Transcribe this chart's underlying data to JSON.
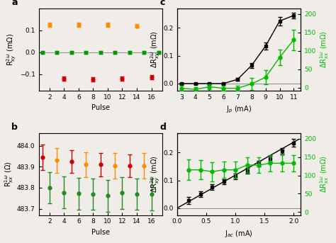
{
  "panel_a": {
    "label": "a",
    "xlabel": "Pulse",
    "ylabel": "R$^{2\\omega}_{xy}$ (mΩ)",
    "xlim": [
      0.5,
      17.5
    ],
    "ylim": [
      -0.175,
      0.2
    ],
    "yticks": [
      -0.1,
      0.0,
      0.1
    ],
    "xticks": [
      2,
      4,
      6,
      8,
      10,
      12,
      14,
      16
    ],
    "orange_x": [
      2,
      6,
      10,
      14
    ],
    "orange_y": [
      0.125,
      0.125,
      0.125,
      0.12
    ],
    "orange_yerr": [
      0.009,
      0.009,
      0.009,
      0.009
    ],
    "green_x": [
      1,
      3,
      5,
      7,
      9,
      11,
      13,
      15,
      17
    ],
    "green_y": [
      0.0,
      0.0,
      0.0,
      0.0,
      0.0,
      0.0,
      0.0,
      0.0,
      0.0
    ],
    "green_yerr": [
      0.006,
      0.006,
      0.006,
      0.006,
      0.006,
      0.006,
      0.006,
      0.006,
      0.006
    ],
    "red_x": [
      4,
      8,
      12,
      16
    ],
    "red_y": [
      -0.12,
      -0.125,
      -0.12,
      -0.115
    ],
    "red_yerr": [
      0.01,
      0.01,
      0.01,
      0.01
    ],
    "orange_color": "#FF8C00",
    "green_color": "#009900",
    "red_color": "#CC0000",
    "hline_y": 0.0
  },
  "panel_b": {
    "label": "b",
    "xlabel": "Pulse",
    "ylabel": "R$^{1\\omega}_{xx}$ (Ω)",
    "xlim": [
      0.5,
      17.5
    ],
    "ylim": [
      483.67,
      484.06
    ],
    "yticks": [
      483.7,
      483.8,
      483.9,
      484.0
    ],
    "xticks": [
      2,
      4,
      6,
      8,
      10,
      12,
      14,
      16
    ],
    "red_x": [
      1,
      5,
      9,
      13
    ],
    "red_y": [
      483.945,
      483.925,
      483.91,
      483.905
    ],
    "red_yerr": [
      0.06,
      0.055,
      0.055,
      0.055
    ],
    "orange_x": [
      3,
      7,
      11,
      15
    ],
    "orange_y": [
      483.93,
      483.91,
      483.905,
      483.905
    ],
    "orange_yerr": [
      0.06,
      0.06,
      0.06,
      0.06
    ],
    "green_x": [
      2,
      4,
      6,
      8,
      10,
      12,
      14,
      16
    ],
    "green_y": [
      483.8,
      483.778,
      483.772,
      483.77,
      483.762,
      483.775,
      483.77,
      483.768
    ],
    "green_yerr": [
      0.075,
      0.075,
      0.075,
      0.075,
      0.075,
      0.075,
      0.075,
      0.075
    ],
    "orange_color": "#FF8C00",
    "red_color": "#CC0000",
    "green_color": "#228B22"
  },
  "panel_c": {
    "label": "c",
    "xlabel": "J$_p$ (mA)",
    "ylabel_left": "ΔR$^{2\\omega}_{xy}$ (mΩ)",
    "ylabel_right": "ΔR$^{1\\omega}_{xx}$ (mΩ)",
    "xlim": [
      2.7,
      11.5
    ],
    "ylim_left": [
      -0.025,
      0.27
    ],
    "ylim_right": [
      -8,
      215
    ],
    "yticks_left": [
      0.0,
      0.1,
      0.2
    ],
    "yticks_right": [
      0,
      50,
      100,
      150,
      200
    ],
    "xticks": [
      3,
      4,
      5,
      6,
      7,
      8,
      9,
      10,
      11
    ],
    "black_x": [
      3,
      4,
      5,
      6,
      7,
      8,
      9,
      10,
      11
    ],
    "black_y": [
      0.0,
      0.0,
      0.0,
      0.0,
      0.015,
      0.065,
      0.135,
      0.225,
      0.245
    ],
    "black_yerr": [
      0.003,
      0.003,
      0.003,
      0.003,
      0.005,
      0.008,
      0.012,
      0.015,
      0.01
    ],
    "green_x": [
      3,
      4,
      5,
      6,
      7,
      8,
      9,
      10,
      11
    ],
    "green_y": [
      -2,
      -5,
      2,
      -2,
      -2,
      10,
      28,
      82,
      130
    ],
    "green_yerr": [
      6,
      6,
      6,
      6,
      6,
      16,
      20,
      22,
      28
    ],
    "black_color": "#000000",
    "green_color": "#00BB00"
  },
  "panel_d": {
    "label": "d",
    "xlabel": "J$_{ac}$ (mA)",
    "ylabel_left": "ΔR$^{2\\omega}_{xy}$ (mΩ)",
    "ylabel_right": "ΔR$^{1\\omega}_{xx}$ (mΩ)",
    "xlim": [
      0.05,
      2.12
    ],
    "ylim_left": [
      -0.025,
      0.27
    ],
    "ylim_right": [
      -8,
      215
    ],
    "yticks_left": [
      0.0,
      0.1,
      0.2
    ],
    "yticks_right": [
      0,
      50,
      100,
      150,
      200
    ],
    "xticks": [
      0.0,
      0.5,
      1.0,
      1.5,
      2.0
    ],
    "black_x": [
      0.2,
      0.4,
      0.6,
      0.8,
      1.0,
      1.2,
      1.4,
      1.6,
      1.8,
      2.0
    ],
    "black_y": [
      0.028,
      0.05,
      0.075,
      0.095,
      0.115,
      0.135,
      0.16,
      0.178,
      0.205,
      0.235
    ],
    "black_yerr": [
      0.013,
      0.01,
      0.01,
      0.01,
      0.01,
      0.01,
      0.01,
      0.01,
      0.01,
      0.015
    ],
    "green_x": [
      0.2,
      0.4,
      0.6,
      0.8,
      1.0,
      1.2,
      1.4,
      1.6,
      1.8,
      2.0
    ],
    "green_y": [
      115,
      115,
      110,
      115,
      115,
      128,
      128,
      133,
      133,
      133
    ],
    "green_yerr": [
      28,
      26,
      26,
      22,
      22,
      22,
      22,
      22,
      22,
      22
    ],
    "black_color": "#000000",
    "green_color": "#00BB00",
    "fit_x": [
      0.0,
      2.08
    ],
    "fit_y": [
      0.0,
      0.247
    ]
  },
  "bg_color": "#f0ece8",
  "fig_bg": "#f0ece8"
}
